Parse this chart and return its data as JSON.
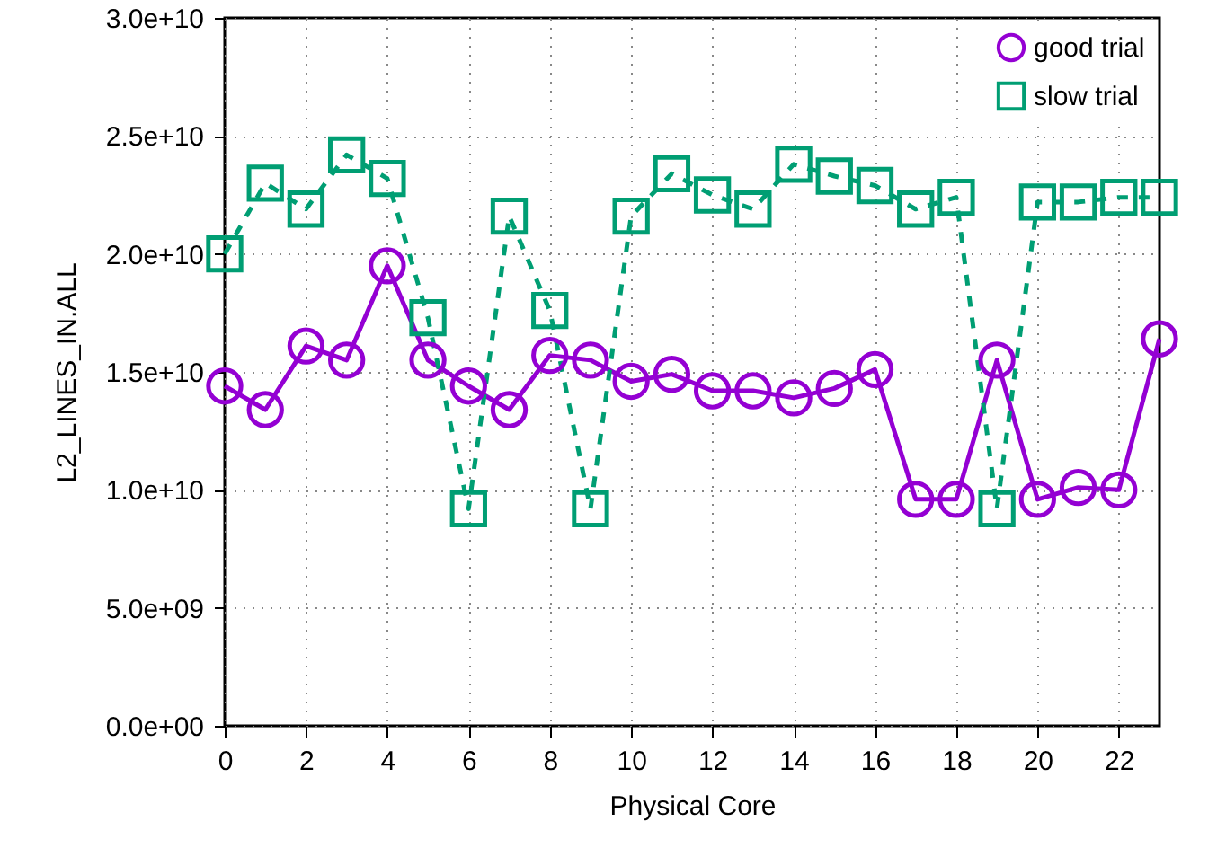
{
  "chart_data": {
    "type": "line",
    "xlabel": "Physical Core",
    "ylabel": "L2_LINES_IN.ALL",
    "x": [
      0,
      1,
      2,
      3,
      4,
      5,
      6,
      7,
      8,
      9,
      10,
      11,
      12,
      13,
      14,
      15,
      16,
      17,
      18,
      19,
      20,
      21,
      22,
      23
    ],
    "series": [
      {
        "name": "good trial",
        "color": "#9400d3",
        "marker": "circle",
        "line_style": "solid",
        "values": [
          14400000000,
          13400000000,
          16100000000,
          15500000000,
          19500000000,
          15500000000,
          14400000000,
          13400000000,
          15700000000,
          15500000000,
          14600000000,
          14900000000,
          14200000000,
          14200000000,
          13900000000,
          14300000000,
          15100000000,
          9600000000,
          9600000000,
          15500000000,
          9600000000,
          10100000000,
          10000000000,
          16400000000
        ]
      },
      {
        "name": "slow trial",
        "color": "#009e73",
        "marker": "square",
        "line_style": "dashed",
        "values": [
          20000000000,
          23000000000,
          21900000000,
          24200000000,
          23200000000,
          17300000000,
          9200000000,
          21600000000,
          17600000000,
          9200000000,
          21600000000,
          23400000000,
          22500000000,
          21900000000,
          23800000000,
          23300000000,
          22900000000,
          21900000000,
          22400000000,
          9200000000,
          22200000000,
          22200000000,
          22400000000,
          22400000000
        ]
      }
    ],
    "xlim": [
      0,
      23
    ],
    "xticks": [
      0,
      2,
      4,
      6,
      8,
      10,
      12,
      14,
      16,
      18,
      20,
      22
    ],
    "ylim": [
      0,
      30000000000
    ],
    "yticks": [
      {
        "value": 0,
        "label": "0.0e+00"
      },
      {
        "value": 5000000000,
        "label": "5.0e+09"
      },
      {
        "value": 10000000000,
        "label": "1.0e+10"
      },
      {
        "value": 15000000000,
        "label": "1.5e+10"
      },
      {
        "value": 20000000000,
        "label": "2.0e+10"
      },
      {
        "value": 25000000000,
        "label": "2.5e+10"
      },
      {
        "value": 30000000000,
        "label": "3.0e+10"
      }
    ],
    "grid": true,
    "legend": "top right"
  }
}
